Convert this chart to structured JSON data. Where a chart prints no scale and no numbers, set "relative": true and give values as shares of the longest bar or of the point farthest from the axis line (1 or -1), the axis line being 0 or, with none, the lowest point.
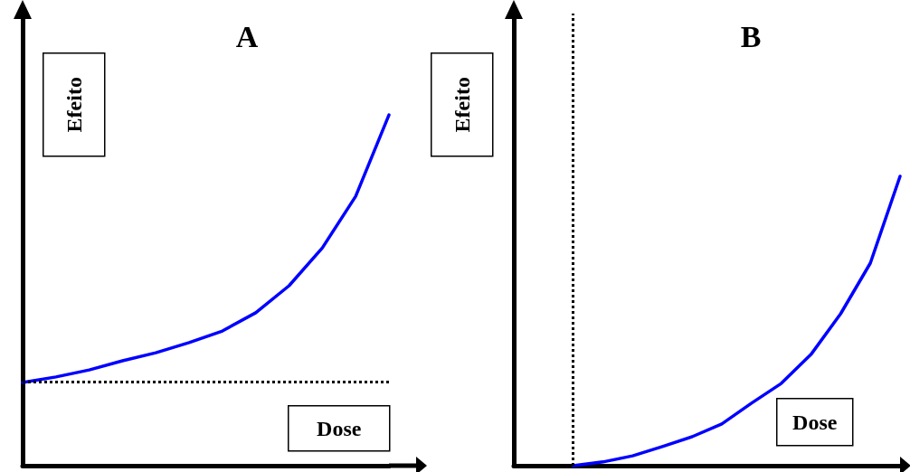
{
  "chart_data": [
    {
      "type": "line",
      "title": "A",
      "xlabel": "Dose",
      "ylabel": "Efeito",
      "relative": true,
      "categories": [
        null,
        null,
        null,
        null,
        null,
        null,
        null,
        null,
        null,
        null,
        null,
        null
      ],
      "series": [
        {
          "color": "#0000ff",
          "values": [
            0.237,
            0.253,
            0.273,
            0.299,
            0.322,
            0.351,
            0.384,
            0.436,
            0.513,
            0.621,
            0.768,
            1
          ]
        }
      ],
      "ref_lines": [
        {
          "axis": "y",
          "value": 0.237,
          "color": "#000000",
          "line_style": "dotted"
        }
      ],
      "marker": "none",
      "line_style": "solid",
      "grid": false
    },
    {
      "type": "line",
      "title": "B",
      "xlabel": "Dose",
      "ylabel": "Efeito",
      "relative": true,
      "categories": [
        null,
        null,
        null,
        null,
        null,
        null,
        null,
        null,
        null,
        null,
        null,
        null,
        null,
        null
      ],
      "series": [
        {
          "color": "#0000ff",
          "values": [
            null,
            null,
            0,
            0.013,
            0.034,
            0.066,
            0.1,
            0.144,
            0.216,
            0.284,
            0.384,
            0.525,
            0.7,
            1
          ]
        }
      ],
      "marker": "none",
      "line_style": "solid",
      "grid": false
    }
  ]
}
